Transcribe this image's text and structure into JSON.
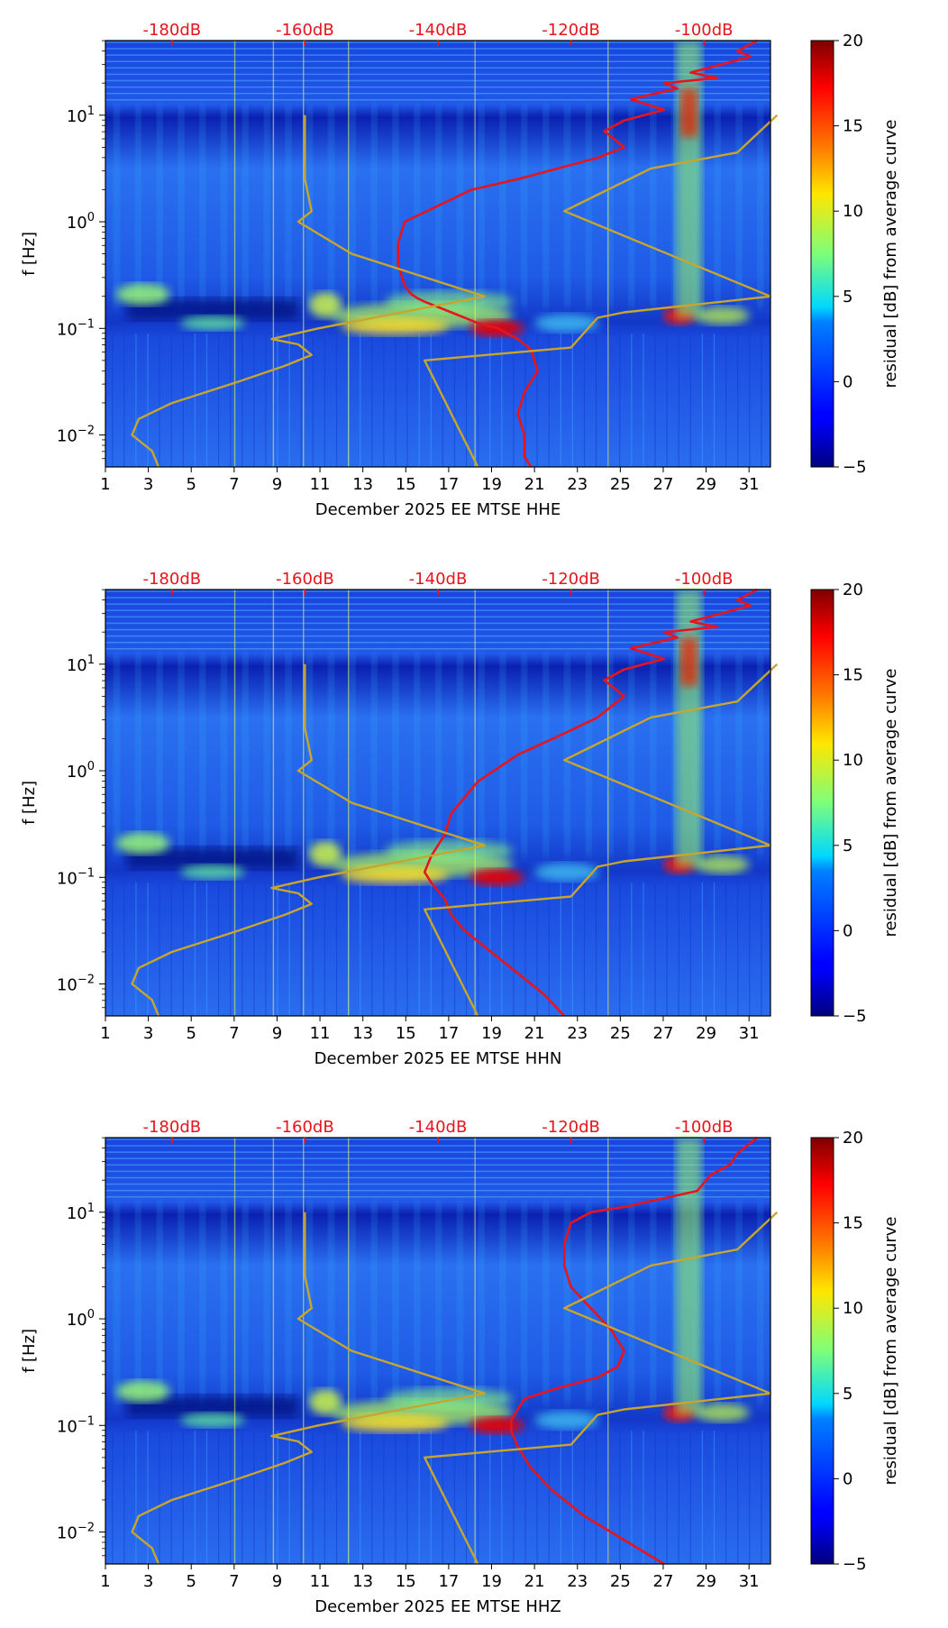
{
  "figure": {
    "xlabel_prefix": "December 2025 EE MTSE",
    "ylabel": "f [Hz]",
    "colorbar_label": "residual [dB] from average curve",
    "colorbar_ticks": [
      "−5",
      "0",
      "5",
      "10",
      "15",
      "20"
    ],
    "x_tick_labels": [
      "1",
      "3",
      "5",
      "7",
      "9",
      "11",
      "13",
      "15",
      "17",
      "19",
      "21",
      "23",
      "25",
      "27",
      "29",
      "31"
    ],
    "top_tick_labels": [
      "-180dB",
      "-160dB",
      "-140dB",
      "-120dB",
      "-100dB"
    ],
    "colors": {
      "average_line": "#e8141c",
      "model_line": "#c8a52c",
      "top_ticks": "#e8141c"
    }
  },
  "chart_data": [
    {
      "type": "heatmap",
      "channel": "HHE",
      "xlabel": "December 2025 EE MTSE  HHE",
      "ylabel": "f [Hz]",
      "xlim": [
        1,
        32
      ],
      "ylim_log10": [
        -2.3,
        1.7
      ],
      "color_range_db": [
        -5,
        20
      ],
      "top_axis_db_range": [
        -190,
        -90
      ],
      "average_curve": {
        "db": [
          -126,
          -127,
          -127,
          -128,
          -127,
          -125,
          -126,
          -128,
          -131,
          -134,
          -138,
          -140,
          -142,
          -143,
          -144,
          -145,
          -146,
          -146,
          -145,
          -140,
          -135,
          -128,
          -122,
          -116,
          -112,
          -115,
          -112,
          -106,
          -111,
          -104,
          -106,
          -98,
          -102,
          -96,
          -93,
          -95,
          -92
        ],
        "log10_f": [
          -2.3,
          -2.2,
          -2.0,
          -1.8,
          -1.6,
          -1.4,
          -1.2,
          -1.1,
          -1.0,
          -0.95,
          -0.85,
          -0.8,
          -0.75,
          -0.72,
          -0.68,
          -0.6,
          -0.4,
          -0.2,
          0.0,
          0.15,
          0.3,
          0.4,
          0.5,
          0.6,
          0.7,
          0.85,
          0.95,
          1.05,
          1.15,
          1.25,
          1.3,
          1.35,
          1.4,
          1.5,
          1.55,
          1.6,
          1.7
        ]
      },
      "model_curves": [
        {
          "db": [
            -182,
            -183,
            -186,
            -185,
            -180,
            -170,
            -163,
            -159,
            -161,
            -165,
            -158,
            -133,
            -153,
            -161,
            -159,
            -160,
            -160
          ],
          "log10_f": [
            -2.3,
            -2.15,
            -2.0,
            -1.85,
            -1.7,
            -1.5,
            -1.35,
            -1.25,
            -1.15,
            -1.1,
            -1.0,
            -0.7,
            -0.3,
            0.0,
            0.1,
            0.4,
            1.0
          ]
        },
        {
          "db": [
            -134,
            -142,
            -120,
            -116,
            -112,
            -90,
            -121,
            -108,
            -95,
            -89
          ],
          "log10_f": [
            -2.3,
            -1.3,
            -1.18,
            -0.9,
            -0.85,
            -0.7,
            0.1,
            0.5,
            0.65,
            1.0
          ]
        }
      ]
    },
    {
      "type": "heatmap",
      "channel": "HHN",
      "xlabel": "December 2025 EE MTSE  HHN",
      "ylabel": "f [Hz]",
      "xlim": [
        1,
        32
      ],
      "ylim_log10": [
        -2.3,
        1.7
      ],
      "color_range_db": [
        -5,
        20
      ],
      "top_axis_db_range": [
        -190,
        -90
      ],
      "average_curve": {
        "db": [
          -121,
          -124,
          -128,
          -132,
          -136,
          -138,
          -139,
          -141,
          -142,
          -141,
          -139,
          -138,
          -134,
          -128,
          -121,
          -116,
          -112,
          -115,
          -112,
          -106,
          -111,
          -104,
          -106,
          -98,
          -102,
          -96,
          -93,
          -95,
          -92
        ],
        "log10_f": [
          -2.3,
          -2.1,
          -1.9,
          -1.7,
          -1.5,
          -1.35,
          -1.2,
          -1.05,
          -0.95,
          -0.8,
          -0.6,
          -0.4,
          -0.1,
          0.15,
          0.35,
          0.5,
          0.7,
          0.85,
          0.95,
          1.05,
          1.15,
          1.25,
          1.3,
          1.35,
          1.4,
          1.5,
          1.55,
          1.6,
          1.7
        ]
      },
      "model_curves": [
        {
          "db": [
            -182,
            -183,
            -186,
            -185,
            -180,
            -170,
            -163,
            -159,
            -161,
            -165,
            -158,
            -133,
            -153,
            -161,
            -159,
            -160,
            -160
          ],
          "log10_f": [
            -2.3,
            -2.15,
            -2.0,
            -1.85,
            -1.7,
            -1.5,
            -1.35,
            -1.25,
            -1.15,
            -1.1,
            -1.0,
            -0.7,
            -0.3,
            0.0,
            0.1,
            0.4,
            1.0
          ]
        },
        {
          "db": [
            -134,
            -142,
            -120,
            -116,
            -112,
            -90,
            -121,
            -108,
            -95,
            -89
          ],
          "log10_f": [
            -2.3,
            -1.3,
            -1.18,
            -0.9,
            -0.85,
            -0.7,
            0.1,
            0.5,
            0.65,
            1.0
          ]
        }
      ]
    },
    {
      "type": "heatmap",
      "channel": "HHZ",
      "xlabel": "December 2025 EE MTSE  HHZ",
      "ylabel": "f [Hz]",
      "xlim": [
        1,
        32
      ],
      "ylim_log10": [
        -2.3,
        1.7
      ],
      "color_range_db": [
        -5,
        20
      ],
      "top_axis_db_range": [
        -190,
        -90
      ],
      "average_curve": {
        "db": [
          -106,
          -110,
          -114,
          -118,
          -123,
          -126,
          -128,
          -129,
          -129,
          -128,
          -127,
          -122,
          -116,
          -113,
          -112,
          -114,
          -117,
          -120,
          -121,
          -121,
          -120,
          -117,
          -112,
          -101,
          -99,
          -96,
          -95,
          -92
        ],
        "log10_f": [
          -2.3,
          -2.15,
          -2.0,
          -1.85,
          -1.6,
          -1.4,
          -1.2,
          -1.05,
          -0.95,
          -0.85,
          -0.75,
          -0.65,
          -0.55,
          -0.45,
          -0.3,
          -0.1,
          0.1,
          0.3,
          0.5,
          0.7,
          0.9,
          1.0,
          1.05,
          1.2,
          1.35,
          1.45,
          1.55,
          1.7
        ]
      },
      "model_curves": [
        {
          "db": [
            -182,
            -183,
            -186,
            -185,
            -180,
            -170,
            -163,
            -159,
            -161,
            -165,
            -158,
            -133,
            -153,
            -161,
            -159,
            -160,
            -160
          ],
          "log10_f": [
            -2.3,
            -2.15,
            -2.0,
            -1.85,
            -1.7,
            -1.5,
            -1.35,
            -1.25,
            -1.15,
            -1.1,
            -1.0,
            -0.7,
            -0.3,
            0.0,
            0.1,
            0.4,
            1.0
          ]
        },
        {
          "db": [
            -134,
            -142,
            -120,
            -116,
            -112,
            -90,
            -121,
            -108,
            -95,
            -89
          ],
          "log10_f": [
            -2.3,
            -1.3,
            -1.18,
            -0.9,
            -0.85,
            -0.7,
            0.1,
            0.5,
            0.65,
            1.0
          ]
        }
      ]
    }
  ]
}
